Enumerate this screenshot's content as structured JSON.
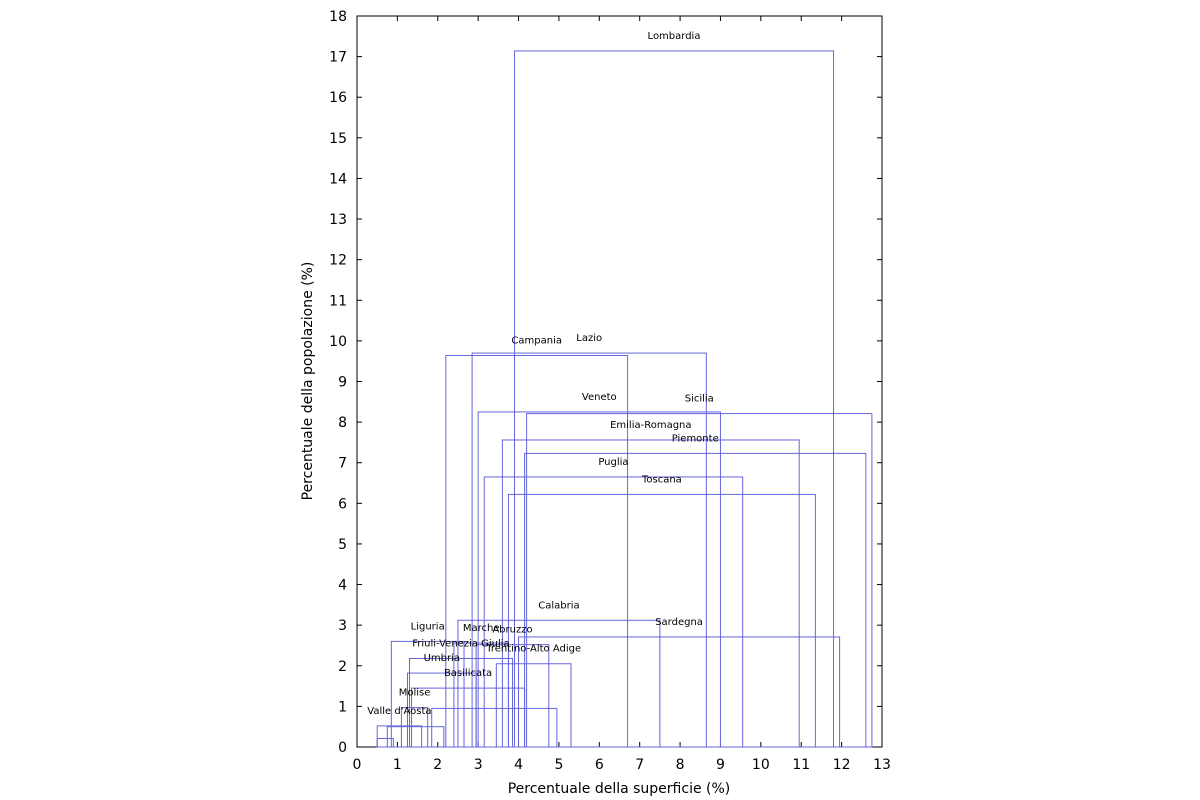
{
  "chart_data": {
    "type": "other",
    "xlabel": "Percentuale della superficie (%)",
    "ylabel": "Percentuale della popolazione (%)",
    "xlim": [
      0,
      13
    ],
    "ylim": [
      0,
      18
    ],
    "xticks": [
      "0",
      "1",
      "2",
      "3",
      "4",
      "5",
      "6",
      "7",
      "8",
      "9",
      "10",
      "11",
      "12",
      "13"
    ],
    "yticks": [
      "0",
      "1",
      "2",
      "3",
      "4",
      "5",
      "6",
      "7",
      "8",
      "9",
      "10",
      "11",
      "12",
      "13",
      "14",
      "15",
      "16",
      "17",
      "18"
    ],
    "grid": false,
    "series_color": "#6666dd",
    "regions": [
      {
        "name": "Lombardia",
        "x": [
          3.9,
          11.8
        ],
        "y": 17.14
      },
      {
        "name": "Campania",
        "x": [
          2.2,
          6.7
        ],
        "y": 9.64
      },
      {
        "name": "Lazio",
        "x": [
          2.85,
          8.65
        ],
        "y": 9.7
      },
      {
        "name": "Veneto",
        "x": [
          3.0,
          9.0
        ],
        "y": 8.25
      },
      {
        "name": "Sicilia",
        "x": [
          4.2,
          12.75
        ],
        "y": 8.21
      },
      {
        "name": "Emilia-Romagna",
        "x": [
          3.6,
          10.95
        ],
        "y": 7.56
      },
      {
        "name": "Piemonte",
        "x": [
          4.15,
          12.6
        ],
        "y": 7.23
      },
      {
        "name": "Puglia",
        "x": [
          3.15,
          9.55
        ],
        "y": 6.65
      },
      {
        "name": "Toscana",
        "x": [
          3.75,
          11.35
        ],
        "y": 6.22
      },
      {
        "name": "Calabria",
        "x": [
          2.5,
          7.5
        ],
        "y": 3.12
      },
      {
        "name": "Sardegna",
        "x": [
          4.0,
          11.95
        ],
        "y": 2.71
      },
      {
        "name": "Liguria",
        "x": [
          0.85,
          2.65
        ],
        "y": 2.6
      },
      {
        "name": "Marche",
        "x": [
          2.4,
          3.75
        ],
        "y": 2.56
      },
      {
        "name": "Abruzzo",
        "x": [
          2.95,
          4.75
        ],
        "y": 2.52
      },
      {
        "name": "Friuli-Venezia Giulia",
        "x": [
          1.3,
          3.85
        ],
        "y": 2.18
      },
      {
        "name": "Trentino-Alto Adige",
        "x": [
          3.45,
          5.3
        ],
        "y": 2.05
      },
      {
        "name": "Umbria",
        "x": [
          1.25,
          2.95
        ],
        "y": 1.82
      },
      {
        "name": "Basilicata",
        "x": [
          1.35,
          4.15
        ],
        "y": 1.45
      },
      {
        "name": "Molise",
        "x": [
          1.1,
          1.75
        ],
        "y": 0.97
      },
      {
        "name": "Valle d'Aosta",
        "x": [
          0.5,
          1.6
        ],
        "y": 0.52
      }
    ],
    "extra_boxes": [
      {
        "x": [
          1.85,
          4.95
        ],
        "y": 0.95
      },
      {
        "x": [
          0.75,
          2.15
        ],
        "y": 0.5
      },
      {
        "x": [
          0.5,
          0.9
        ],
        "y": 0.21
      }
    ]
  }
}
